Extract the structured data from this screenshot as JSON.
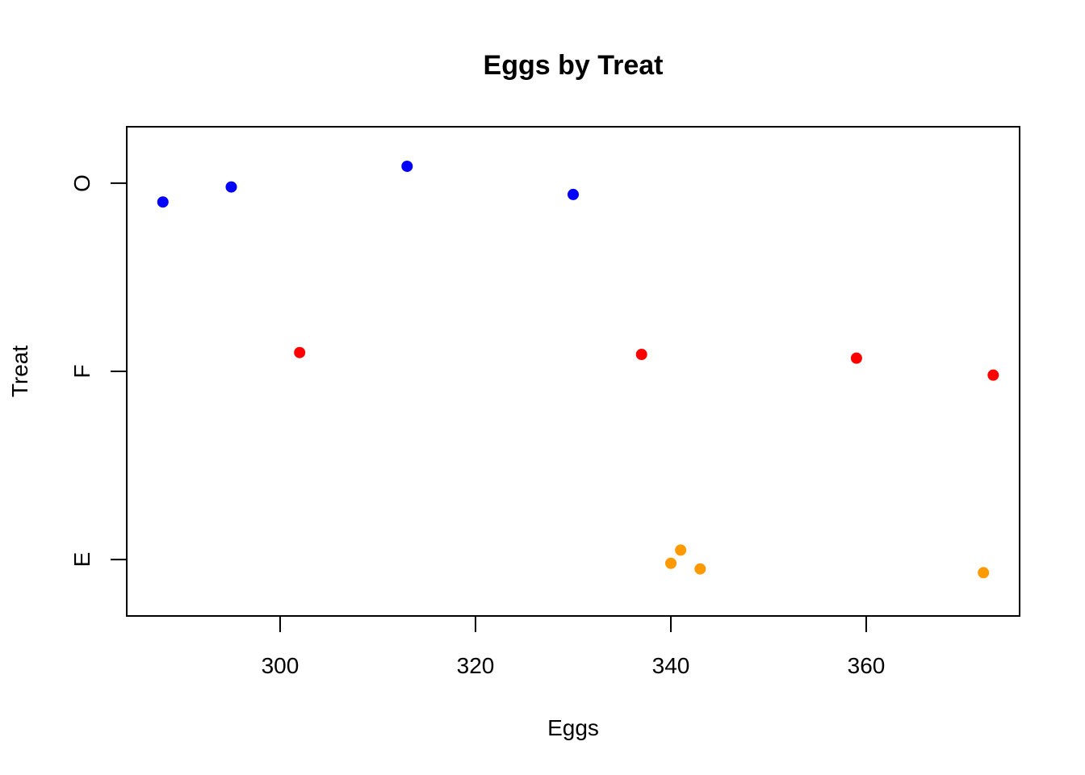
{
  "chart_data": {
    "type": "scatter",
    "title": "Eggs by Treat",
    "xlabel": "Eggs",
    "ylabel": "Treat",
    "xlim": [
      284.3,
      375.7
    ],
    "x_ticks": [
      300,
      320,
      340,
      360
    ],
    "categories": [
      "E",
      "F",
      "O"
    ],
    "grid": false,
    "series": [
      {
        "category": "O",
        "color": "#0000FF",
        "points": [
          {
            "x": 288,
            "y": -0.1
          },
          {
            "x": 295,
            "y": -0.02
          },
          {
            "x": 313,
            "y": 0.09
          },
          {
            "x": 330,
            "y": -0.06
          }
        ]
      },
      {
        "category": "F",
        "color": "#FF0000",
        "points": [
          {
            "x": 302,
            "y": 0.1
          },
          {
            "x": 337,
            "y": 0.09
          },
          {
            "x": 359,
            "y": 0.07
          },
          {
            "x": 373,
            "y": -0.02
          }
        ]
      },
      {
        "category": "E",
        "color": "#FF9900",
        "points": [
          {
            "x": 340,
            "y": -0.02
          },
          {
            "x": 341,
            "y": 0.05
          },
          {
            "x": 343,
            "y": -0.05
          },
          {
            "x": 372,
            "y": -0.07
          }
        ]
      }
    ]
  }
}
